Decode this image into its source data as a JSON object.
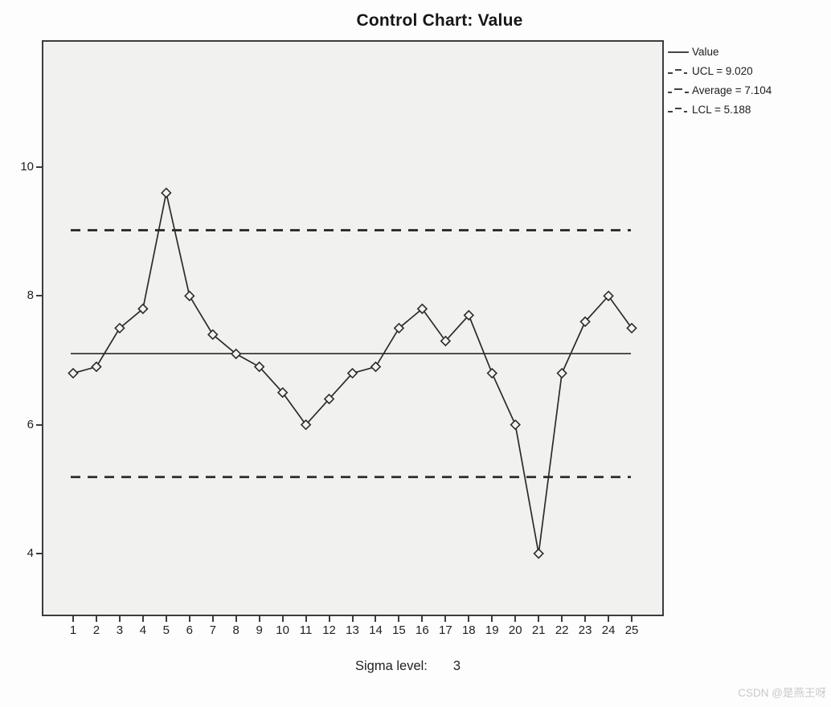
{
  "title": "Control Chart: Value",
  "legend": {
    "items": [
      {
        "label": "Value",
        "style": "solid"
      },
      {
        "label": "UCL = 9.020",
        "style": "dashed"
      },
      {
        "label": "Average = 7.104",
        "style": "dashed"
      },
      {
        "label": "LCL = 5.188",
        "style": "dashed"
      }
    ]
  },
  "footer": {
    "sigma_label": "Sigma level:",
    "sigma_value": "3"
  },
  "watermark": "CSDN @是燕王呀",
  "colors": {
    "line": "#2b2b2b",
    "marker_fill": "#f3f3f2",
    "plot_bg": "#f1f1f0",
    "border": "#3c3c3c"
  },
  "chart_data": {
    "type": "line",
    "title": "Control Chart: Value",
    "series": [
      {
        "name": "Value",
        "values": [
          6.8,
          6.9,
          7.5,
          7.8,
          9.6,
          8.0,
          7.4,
          7.1,
          6.9,
          6.5,
          6.0,
          6.4,
          6.8,
          6.9,
          7.5,
          7.8,
          7.3,
          7.7,
          6.8,
          6.0,
          4.0,
          6.8,
          7.6,
          8.0,
          7.5
        ]
      }
    ],
    "x": [
      1,
      2,
      3,
      4,
      5,
      6,
      7,
      8,
      9,
      10,
      11,
      12,
      13,
      14,
      15,
      16,
      17,
      18,
      19,
      20,
      21,
      22,
      23,
      24,
      25
    ],
    "reference_lines": {
      "ucl": 9.02,
      "average": 7.104,
      "lcl": 5.188
    },
    "sigma_level": 3,
    "xlabel": "",
    "ylabel": "",
    "yticks": [
      4,
      6,
      8,
      10
    ],
    "ylim": [
      3.0,
      12.0
    ],
    "marker": "diamond",
    "grid": false,
    "legend_position": "right"
  }
}
